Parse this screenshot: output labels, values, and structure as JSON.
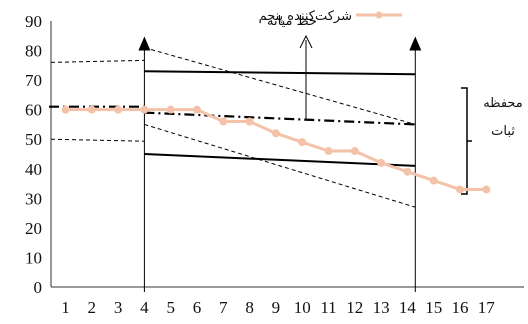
{
  "chart_data": {
    "type": "line",
    "title": "",
    "xlabel": "",
    "ylabel": "",
    "x": [
      1,
      2,
      3,
      4,
      5,
      6,
      7,
      8,
      9,
      10,
      11,
      12,
      13,
      14,
      15,
      16,
      17
    ],
    "ylim": [
      0,
      90
    ],
    "yticks": [
      0,
      10,
      20,
      30,
      40,
      50,
      60,
      70,
      80,
      90
    ],
    "grid": false,
    "legend_position": "top-right",
    "series": [
      {
        "name": "شرکت‌کننده پنجم",
        "color": "#f4c2a8",
        "values": [
          60,
          60,
          60,
          60,
          60,
          60,
          56,
          56,
          52,
          49,
          46,
          46,
          42,
          39,
          36,
          33,
          33
        ]
      }
    ],
    "annotations": {
      "median_line_label": "خط میانه",
      "stability_envelope_label_line1": "محفظه",
      "stability_envelope_label_line2": "ثبات"
    },
    "phase_lines_x": [
      4,
      14.3
    ],
    "baseline_median": 61,
    "baseline_envelope": [
      50,
      76
    ],
    "treatment_median": {
      "x": [
        4,
        14.3
      ],
      "y": [
        59,
        55
      ]
    },
    "treatment_envelope_upper": {
      "x": [
        4,
        14.3
      ],
      "y": [
        73,
        72
      ]
    },
    "treatment_envelope_lower": {
      "x": [
        4,
        14.3
      ],
      "y": [
        45,
        41
      ]
    },
    "trend_upper": {
      "x": [
        4,
        14.3
      ],
      "y": [
        81,
        55
      ]
    },
    "trend_lower": {
      "x": [
        4,
        14.3
      ],
      "y": [
        55,
        27
      ]
    }
  }
}
